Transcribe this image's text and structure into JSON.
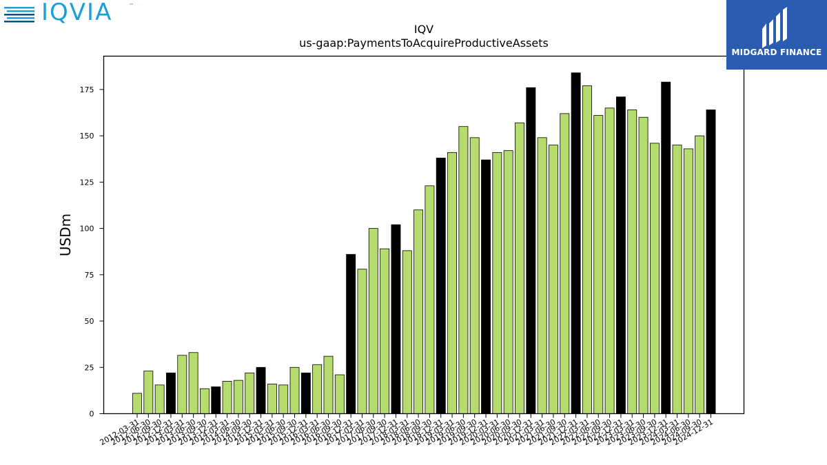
{
  "logos": {
    "left_text": "IQVIA",
    "left_tm": "™",
    "right_text": "MIDGARD FINANCE",
    "left_color": "#1a9fd8",
    "right_bg": "#2a5db0"
  },
  "chart_data": {
    "type": "bar",
    "title": "IQV",
    "subtitle": "us-gaap:PaymentsToAcquireProductiveAssets",
    "ylabel": "USDm",
    "xlabel": "",
    "ylim": [
      0,
      193
    ],
    "yticks": [
      0,
      25,
      50,
      75,
      100,
      125,
      150,
      175
    ],
    "bar_color": "#b5dc6d",
    "highlight_color": "#000000",
    "grid": false,
    "categories": [
      "2012-03-31",
      "2012-06-30",
      "2012-09-30",
      "2012-12-31",
      "2013-03-31",
      "2013-06-30",
      "2013-09-30",
      "2013-12-31",
      "2014-03-31",
      "2014-06-30",
      "2014-09-30",
      "2014-12-31",
      "2015-03-31",
      "2015-06-30",
      "2015-09-30",
      "2015-12-31",
      "2016-03-31",
      "2016-06-30",
      "2016-09-30",
      "2016-12-31",
      "2017-03-31",
      "2017-06-30",
      "2017-09-30",
      "2017-12-31",
      "2018-03-31",
      "2018-06-30",
      "2018-09-30",
      "2018-12-31",
      "2019-03-31",
      "2019-06-30",
      "2019-09-30",
      "2019-12-31",
      "2020-03-31",
      "2020-06-30",
      "2020-09-30",
      "2020-12-31",
      "2021-03-31",
      "2021-06-30",
      "2021-09-30",
      "2021-12-31",
      "2022-03-31",
      "2022-06-30",
      "2022-09-30",
      "2022-12-31",
      "2023-03-31",
      "2023-06-30",
      "2023-09-30",
      "2023-12-31",
      "2024-03-31",
      "2024-06-30",
      "2024-09-30",
      "2024-12-31"
    ],
    "values": [
      11,
      23,
      15.5,
      22,
      31.5,
      33,
      13.5,
      14.5,
      17.5,
      18,
      22,
      25,
      16,
      15.5,
      25,
      22,
      26.5,
      31,
      21,
      86,
      78,
      100,
      89,
      102,
      88,
      110,
      123,
      138,
      141,
      155,
      149,
      137,
      141,
      142,
      157,
      176,
      149,
      145,
      162,
      184,
      177,
      161,
      165,
      171,
      164,
      160,
      146,
      179,
      145,
      143,
      150,
      164
    ],
    "highlighted": [
      false,
      false,
      false,
      true,
      false,
      false,
      false,
      true,
      false,
      false,
      false,
      true,
      false,
      false,
      false,
      true,
      false,
      false,
      false,
      true,
      false,
      false,
      false,
      true,
      false,
      false,
      false,
      true,
      false,
      false,
      false,
      true,
      false,
      false,
      false,
      true,
      false,
      false,
      false,
      true,
      false,
      false,
      false,
      true,
      false,
      false,
      false,
      true,
      false,
      false,
      false,
      true
    ]
  }
}
